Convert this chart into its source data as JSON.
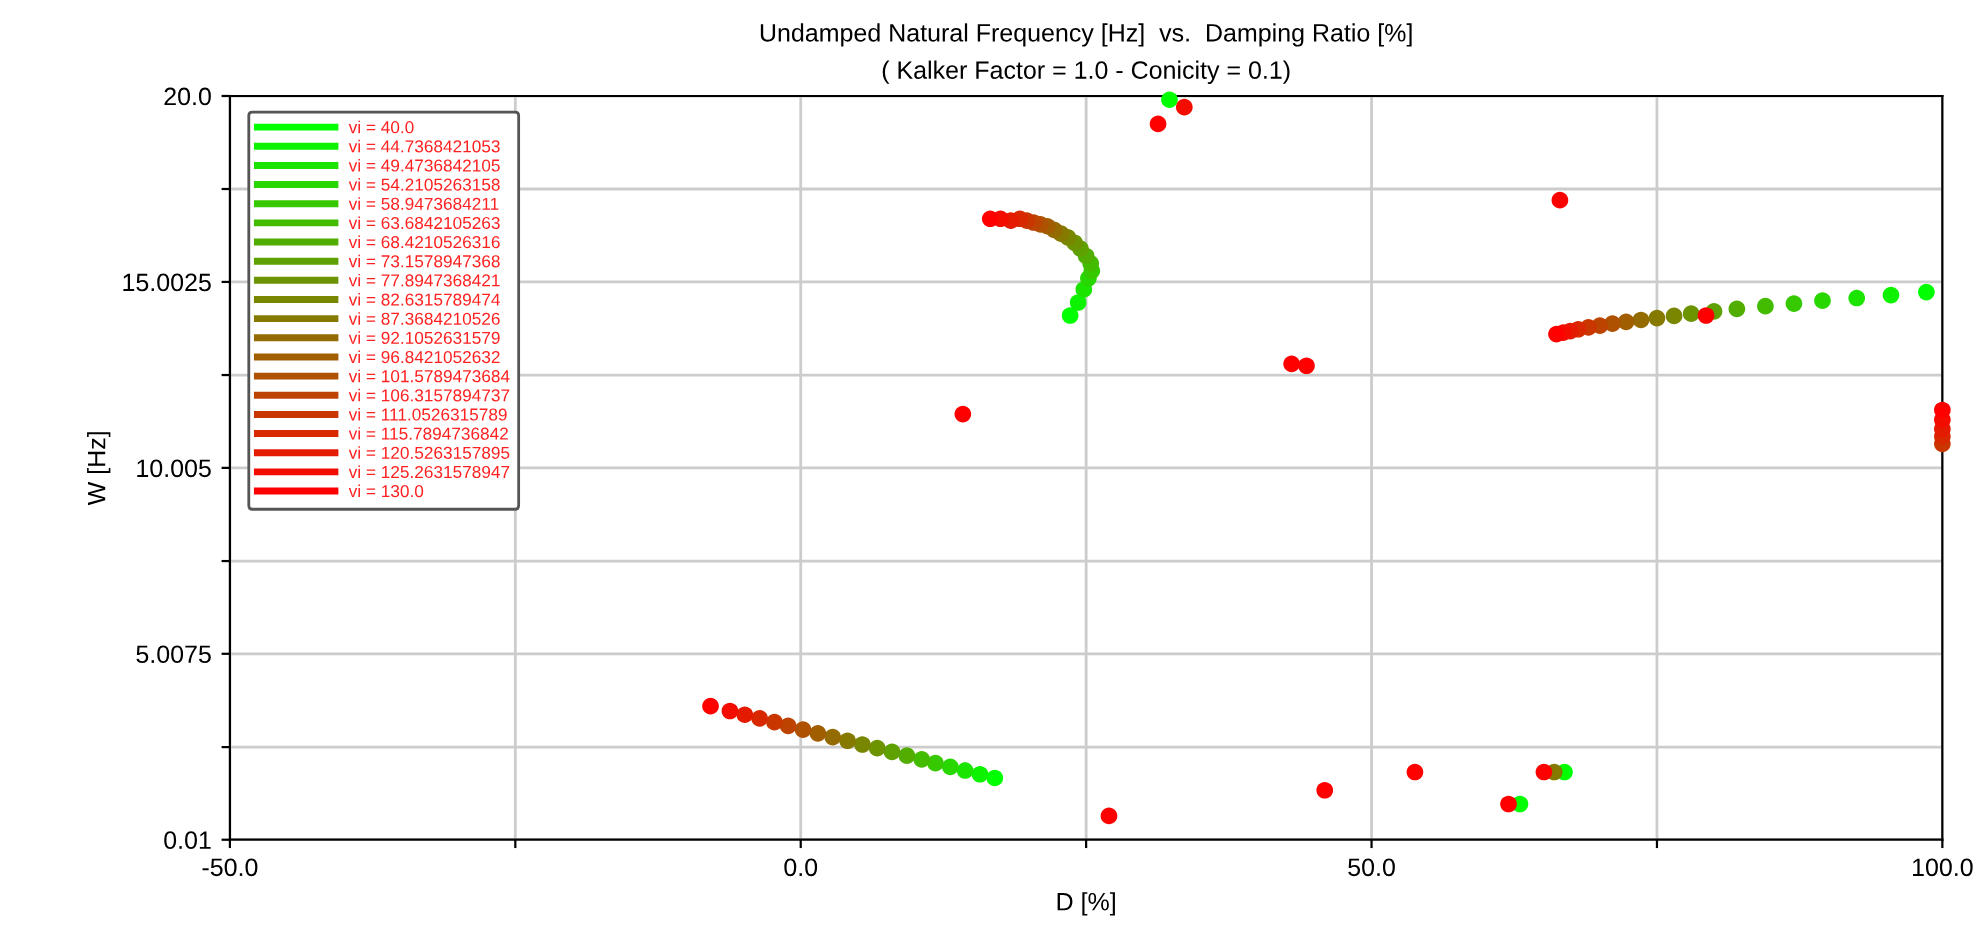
{
  "chart_data": {
    "type": "scatter",
    "title": "Undamped Natural Frequency [Hz]  vs.  Damping Ratio [%]",
    "subtitle": "( Kalker Factor = 1.0 - Conicity = 0.1)",
    "xlabel": "D [%]",
    "ylabel": "W [Hz]",
    "xlim": [
      -50,
      100
    ],
    "ylim": [
      0.01,
      20.0
    ],
    "xticks": [
      {
        "value": -50,
        "label": "-50.0"
      },
      {
        "value": -25,
        "label": null
      },
      {
        "value": 0,
        "label": "0.0"
      },
      {
        "value": 25,
        "label": null
      },
      {
        "value": 50,
        "label": "50.0"
      },
      {
        "value": 75,
        "label": null
      },
      {
        "value": 100,
        "label": "100.0"
      }
    ],
    "yticks": [
      0.01,
      {
        "value": 2.5,
        "label": null
      },
      5.0075,
      {
        "value": 7.5,
        "label": null
      },
      10.005,
      {
        "value": 12.5,
        "label": null
      },
      15.0025,
      {
        "value": 17.5,
        "label": null
      },
      {
        "value": 20.0,
        "label": "20.0"
      }
    ],
    "grid": true,
    "legend": "top left",
    "marker": "circle",
    "series": [
      {
        "name": "vi = 40.0",
        "color": "#00ff00",
        "x": [
          17.0,
          23.6,
          98.6,
          32.3,
          63.0,
          66.9
        ],
        "values": [
          1.67,
          14.1,
          14.73,
          19.9,
          0.97,
          1.83
        ]
      },
      {
        "name": "vi = 44.7368421053",
        "color": "#0df200",
        "x": [
          15.7,
          24.3,
          95.5
        ],
        "values": [
          1.77,
          14.45,
          14.65
        ]
      },
      {
        "name": "vi = 49.4736842105",
        "color": "#1be400",
        "x": [
          14.4,
          24.8,
          92.5
        ],
        "values": [
          1.87,
          14.8,
          14.57
        ]
      },
      {
        "name": "vi = 54.2105263158",
        "color": "#28d700",
        "x": [
          13.1,
          25.2,
          89.5
        ],
        "values": [
          1.97,
          15.1,
          14.5
        ]
      },
      {
        "name": "vi = 58.9473684211",
        "color": "#36c900",
        "x": [
          11.8,
          25.5,
          87.0
        ],
        "values": [
          2.07,
          15.3,
          14.42
        ]
      },
      {
        "name": "vi = 63.6842105263",
        "color": "#43bc00",
        "x": [
          10.6,
          25.4,
          84.5
        ],
        "values": [
          2.17,
          15.5,
          14.35
        ]
      },
      {
        "name": "vi = 68.4210526316",
        "color": "#51ae00",
        "x": [
          9.3,
          25.0,
          82.0
        ],
        "values": [
          2.27,
          15.7,
          14.28
        ]
      },
      {
        "name": "vi = 73.1578947368",
        "color": "#5ea100",
        "x": [
          8.0,
          24.5,
          80.0
        ],
        "values": [
          2.37,
          15.9,
          14.21
        ]
      },
      {
        "name": "vi = 77.8947368421",
        "color": "#6b9400",
        "x": [
          6.7,
          24.0,
          78.0
        ],
        "values": [
          2.47,
          16.05,
          14.15
        ]
      },
      {
        "name": "vi = 82.6315789474",
        "color": "#798600",
        "x": [
          5.4,
          23.4,
          76.5
        ],
        "values": [
          2.57,
          16.2,
          14.09
        ]
      },
      {
        "name": "vi = 87.3684210526",
        "color": "#867900",
        "x": [
          4.1,
          22.8,
          75.0,
          66.0
        ],
        "values": [
          2.67,
          16.3,
          14.03,
          1.83
        ]
      },
      {
        "name": "vi = 92.1052631579",
        "color": "#946b00",
        "x": [
          2.8,
          22.2,
          73.6
        ],
        "values": [
          2.77,
          16.4,
          13.98
        ]
      },
      {
        "name": "vi = 96.8421052632",
        "color": "#a15e00",
        "x": [
          1.5,
          21.6,
          72.3
        ],
        "values": [
          2.87,
          16.5,
          13.93
        ]
      },
      {
        "name": "vi = 101.5789473684",
        "color": "#ae5100",
        "x": [
          0.2,
          21.0,
          71.1
        ],
        "values": [
          2.97,
          16.55,
          13.88
        ]
      },
      {
        "name": "vi = 106.3157894737",
        "color": "#bc4300",
        "x": [
          -1.1,
          20.4,
          70.0
        ],
        "values": [
          3.07,
          16.6,
          13.83
        ]
      },
      {
        "name": "vi = 111.0526315789",
        "color": "#c93600",
        "x": [
          -2.3,
          19.8,
          69.0,
          100
        ],
        "values": [
          3.17,
          16.65,
          13.78,
          10.65
        ]
      },
      {
        "name": "vi = 115.7894736842",
        "color": "#d72800",
        "x": [
          -3.6,
          19.2,
          68.1,
          100
        ],
        "values": [
          3.27,
          16.7,
          13.73,
          10.85
        ]
      },
      {
        "name": "vi = 120.5263157895",
        "color": "#e41b00",
        "x": [
          -4.9,
          18.4,
          67.4,
          100
        ],
        "values": [
          3.37,
          16.65,
          13.68,
          11.05
        ]
      },
      {
        "name": "vi = 125.2631578947",
        "color": "#f20d00",
        "x": [
          -6.2,
          17.5,
          66.8,
          100,
          33.6
        ],
        "values": [
          3.47,
          16.7,
          13.64,
          11.3,
          19.7
        ]
      },
      {
        "name": "vi = 130.0",
        "color": "#ff0000",
        "x": [
          -7.9,
          16.6,
          66.2,
          100,
          31.3,
          79.3,
          66.5,
          43.0,
          44.3,
          14.2,
          27.0,
          45.9,
          53.8,
          62.0,
          65.1
        ],
        "values": [
          3.6,
          16.7,
          13.6,
          11.56,
          19.25,
          14.1,
          17.2,
          12.8,
          12.75,
          11.45,
          0.65,
          1.34,
          1.83,
          0.97,
          1.83
        ]
      }
    ]
  }
}
